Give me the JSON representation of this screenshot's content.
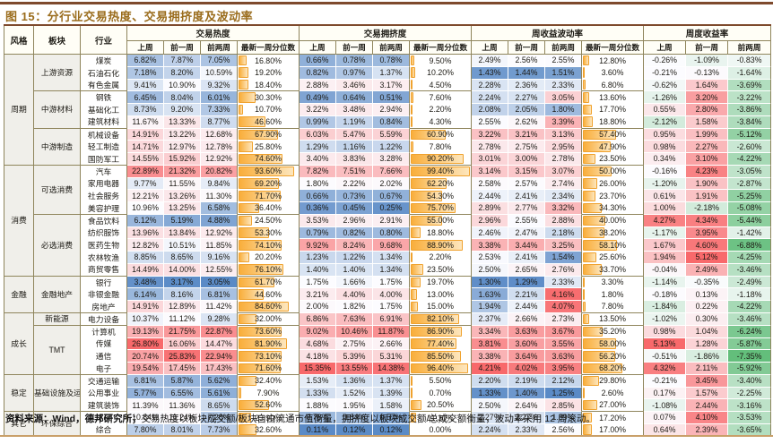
{
  "title": "图 15：分行业交易热度、交易拥挤度及波动率",
  "header": {
    "style_col": "风格",
    "sector_col": "板块",
    "industry_col": "行业",
    "groups": [
      {
        "label": "交易热度",
        "sub": [
          "上周",
          "前一周",
          "前两周",
          "最新一周分位数"
        ]
      },
      {
        "label": "交易拥挤度",
        "sub": [
          "上周",
          "前一周",
          "前两周",
          "最新一周分位数"
        ]
      },
      {
        "label": "周收益波动率",
        "sub": [
          "上周",
          "前一周",
          "前两周",
          "最新一周分位数"
        ]
      },
      {
        "label": "周度收益率",
        "sub": [
          "上周",
          "前一周",
          "前两周"
        ]
      }
    ]
  },
  "styles": [
    {
      "label": "周期",
      "span": 9
    },
    {
      "label": "消费",
      "span": 9
    },
    {
      "label": "金融",
      "span": 3
    },
    {
      "label": "成长",
      "span": 5
    },
    {
      "label": "稳定",
      "span": 3
    },
    {
      "label": "其它",
      "span": 2
    }
  ],
  "sectors": [
    {
      "label": "上游资源",
      "span": 3
    },
    {
      "label": "中游材料",
      "span": 3
    },
    {
      "label": "中游制造",
      "span": 3
    },
    {
      "label": "可选消费",
      "span": 4
    },
    {
      "label": "必选消费",
      "span": 5
    },
    {
      "label": "金融地产",
      "span": 3
    },
    {
      "label": "新能源",
      "span": 1
    },
    {
      "label": "TMT",
      "span": 4
    },
    {
      "label": "基础设施及运营",
      "span": 3
    },
    {
      "label": "环保综合",
      "span": 2
    }
  ],
  "rows": [
    {
      "industry": "煤炭",
      "heat": [
        6.82,
        7.87,
        7.05
      ],
      "heat_pct": 16.8,
      "crowd": [
        0.66,
        0.78,
        0.78
      ],
      "crowd_pct": 9.5,
      "vol": [
        2.49,
        2.56,
        2.55
      ],
      "vol_pct": 12.8,
      "ret": [
        -0.26,
        -1.09,
        -0.83
      ]
    },
    {
      "industry": "石油石化",
      "heat": [
        7.18,
        8.2,
        10.59
      ],
      "heat_pct": 19.2,
      "crowd": [
        0.82,
        0.97,
        1.37
      ],
      "crowd_pct": 10.2,
      "vol": [
        1.43,
        1.44,
        1.51
      ],
      "vol_pct": 3.6,
      "ret": [
        -0.21,
        -0.13,
        -1.64
      ]
    },
    {
      "industry": "有色金属",
      "heat": [
        9.41,
        10.9,
        9.32
      ],
      "heat_pct": 18.4,
      "crowd": [
        2.88,
        3.46,
        3.17
      ],
      "crowd_pct": 4.5,
      "vol": [
        2.28,
        2.36,
        2.33
      ],
      "vol_pct": 6.8,
      "ret": [
        -0.62,
        1.64,
        -3.69
      ]
    },
    {
      "industry": "钢铁",
      "heat": [
        6.45,
        8.04,
        6.01
      ],
      "heat_pct": 30.3,
      "crowd": [
        0.49,
        0.64,
        0.51
      ],
      "crowd_pct": 7.6,
      "vol": [
        2.24,
        2.27,
        3.05
      ],
      "vol_pct": 13.6,
      "ret": [
        -1.26,
        3.2,
        -3.22
      ]
    },
    {
      "industry": "基础化工",
      "heat": [
        8.73,
        9.2,
        7.33
      ],
      "heat_pct": 10.7,
      "crowd": [
        3.22,
        3.48,
        2.94
      ],
      "crowd_pct": 2.2,
      "vol": [
        2.08,
        2.05,
        1.8
      ],
      "vol_pct": 17.7,
      "ret": [
        0.55,
        2.8,
        -3.86
      ]
    },
    {
      "industry": "建筑材料",
      "heat": [
        11.67,
        13.33,
        8.77
      ],
      "heat_pct": 46.6,
      "crowd": [
        0.99,
        1.19,
        0.84
      ],
      "crowd_pct": 4.3,
      "vol": [
        2.55,
        2.62,
        3.39
      ],
      "vol_pct": 18.8,
      "ret": [
        -2.12,
        1.58,
        -3.84
      ]
    },
    {
      "industry": "机械设备",
      "heat": [
        14.91,
        13.22,
        12.68
      ],
      "heat_pct": 67.9,
      "crowd": [
        6.03,
        5.47,
        5.59
      ],
      "crowd_pct": 60.9,
      "vol": [
        3.22,
        3.21,
        3.13
      ],
      "vol_pct": 57.4,
      "ret": [
        0.95,
        1.99,
        -5.12
      ]
    },
    {
      "industry": "轻工制造",
      "heat": [
        14.71,
        12.97,
        12.78
      ],
      "heat_pct": 25.8,
      "crowd": [
        1.29,
        1.16,
        1.22
      ],
      "crowd_pct": 7.8,
      "vol": [
        2.78,
        2.75,
        2.95
      ],
      "vol_pct": 47.9,
      "ret": [
        0.98,
        2.27,
        -2.6
      ]
    },
    {
      "industry": "国防军工",
      "heat": [
        14.55,
        15.92,
        12.92
      ],
      "heat_pct": 74.6,
      "crowd": [
        3.4,
        3.83,
        3.28
      ],
      "crowd_pct": 90.2,
      "vol": [
        3.01,
        3.0,
        2.78
      ],
      "vol_pct": 23.5,
      "ret": [
        0.34,
        3.1,
        -4.22
      ]
    },
    {
      "industry": "汽车",
      "heat": [
        22.89,
        21.32,
        20.82
      ],
      "heat_pct": 93.6,
      "crowd": [
        7.82,
        7.51,
        7.66
      ],
      "crowd_pct": 99.4,
      "vol": [
        3.14,
        3.15,
        3.07
      ],
      "vol_pct": 50.0,
      "ret": [
        -0.16,
        4.23,
        -3.05
      ]
    },
    {
      "industry": "家用电器",
      "heat": [
        9.77,
        11.55,
        9.84
      ],
      "heat_pct": 69.2,
      "crowd": [
        1.8,
        2.22,
        2.02
      ],
      "crowd_pct": 62.2,
      "vol": [
        2.58,
        2.57,
        2.74
      ],
      "vol_pct": 26.0,
      "ret": [
        -1.2,
        1.9,
        -2.87
      ]
    },
    {
      "industry": "社会服务",
      "heat": [
        12.21,
        13.26,
        11.3
      ],
      "heat_pct": 71.7,
      "crowd": [
        0.66,
        0.73,
        0.67
      ],
      "crowd_pct": 54.3,
      "vol": [
        2.44,
        2.41,
        2.34
      ],
      "vol_pct": 23.7,
      "ret": [
        0.61,
        1.91,
        -5.25
      ]
    },
    {
      "industry": "美容护理",
      "heat": [
        10.96,
        13.25,
        6.58
      ],
      "heat_pct": 36.4,
      "crowd": [
        0.36,
        0.45,
        0.25
      ],
      "crowd_pct": 75.7,
      "vol": [
        2.89,
        2.77,
        3.32
      ],
      "vol_pct": 34.3,
      "ret": [
        1.0,
        -2.18,
        -5.08
      ]
    },
    {
      "industry": "食品饮料",
      "heat": [
        6.12,
        5.19,
        4.88
      ],
      "heat_pct": 24.5,
      "crowd": [
        3.53,
        2.96,
        2.91
      ],
      "crowd_pct": 55.0,
      "vol": [
        2.96,
        2.55,
        2.88
      ],
      "vol_pct": 40.0,
      "ret": [
        4.27,
        4.34,
        -5.44
      ]
    },
    {
      "industry": "纺织服饰",
      "heat": [
        13.96,
        13.84,
        12.92
      ],
      "heat_pct": 53.3,
      "crowd": [
        0.79,
        0.82,
        0.8
      ],
      "crowd_pct": 18.8,
      "vol": [
        2.46,
        2.47,
        2.18
      ],
      "vol_pct": 38.2,
      "ret": [
        -1.17,
        3.95,
        -1.42
      ]
    },
    {
      "industry": "医药生物",
      "heat": [
        12.82,
        10.51,
        11.85
      ],
      "heat_pct": 74.1,
      "crowd": [
        9.92,
        8.24,
        9.68
      ],
      "crowd_pct": 88.9,
      "vol": [
        3.38,
        3.44,
        3.25
      ],
      "vol_pct": 58.1,
      "ret": [
        1.67,
        4.6,
        -6.88
      ]
    },
    {
      "industry": "农林牧渔",
      "heat": [
        8.85,
        8.65,
        9.16
      ],
      "heat_pct": 20.2,
      "crowd": [
        1.23,
        1.22,
        1.34
      ],
      "crowd_pct": 2.2,
      "vol": [
        2.53,
        2.41,
        1.54
      ],
      "vol_pct": 25.6,
      "ret": [
        1.94,
        5.12,
        -4.25
      ]
    },
    {
      "industry": "商贸零售",
      "heat": [
        14.49,
        14.0,
        12.55
      ],
      "heat_pct": 76.1,
      "crowd": [
        1.4,
        1.4,
        1.34
      ],
      "crowd_pct": 23.5,
      "vol": [
        2.5,
        2.65,
        2.76
      ],
      "vol_pct": 33.7,
      "ret": [
        -0.04,
        2.49,
        -3.46
      ]
    },
    {
      "industry": "银行",
      "heat": [
        3.48,
        3.17,
        3.05
      ],
      "heat_pct": 61.7,
      "crowd": [
        1.75,
        1.66,
        1.75
      ],
      "crowd_pct": 19.7,
      "vol": [
        1.3,
        1.29,
        2.33
      ],
      "vol_pct": 3.3,
      "ret": [
        -1.14,
        -0.35,
        -2.49
      ]
    },
    {
      "industry": "非银金融",
      "heat": [
        6.14,
        8.16,
        6.81
      ],
      "heat_pct": 44.6,
      "crowd": [
        3.21,
        4.4,
        4.0
      ],
      "crowd_pct": 13.0,
      "vol": [
        1.63,
        2.21,
        4.16
      ],
      "vol_pct": 1.8,
      "ret": [
        -0.18,
        0.13,
        -1.18
      ]
    },
    {
      "industry": "房地产",
      "heat": [
        14.91,
        12.89,
        11.42
      ],
      "heat_pct": 84.6,
      "crowd": [
        2.0,
        1.82,
        1.75
      ],
      "crowd_pct": 15.0,
      "vol": [
        1.94,
        2.44,
        4.07
      ],
      "vol_pct": 7.8,
      "ret": [
        -1.84,
        0.22,
        -4.22
      ]
    },
    {
      "industry": "电力设备",
      "heat": [
        10.37,
        11.12,
        9.28
      ],
      "heat_pct": 32.0,
      "crowd": [
        6.86,
        7.63,
        6.91
      ],
      "crowd_pct": 82.1,
      "vol": [
        2.37,
        2.66,
        2.73
      ],
      "vol_pct": 13.5,
      "ret": [
        -1.02,
        0.3,
        -3.46
      ]
    },
    {
      "industry": "计算机",
      "heat": [
        19.13,
        21.75,
        22.87
      ],
      "heat_pct": 73.6,
      "crowd": [
        9.02,
        10.46,
        11.87
      ],
      "crowd_pct": 86.9,
      "vol": [
        3.34,
        3.63,
        3.67
      ],
      "vol_pct": 35.2,
      "ret": [
        0.98,
        1.04,
        -6.24
      ]
    },
    {
      "industry": "传媒",
      "heat": [
        26.8,
        16.06,
        14.47
      ],
      "heat_pct": 81.9,
      "crowd": [
        4.68,
        2.75,
        2.66
      ],
      "crowd_pct": 77.4,
      "vol": [
        3.81,
        3.6,
        3.55
      ],
      "vol_pct": 58.0,
      "ret": [
        5.13,
        1.28,
        -5.87
      ]
    },
    {
      "industry": "通信",
      "heat": [
        20.74,
        25.83,
        22.94
      ],
      "heat_pct": 73.1,
      "crowd": [
        4.18,
        5.39,
        5.31
      ],
      "crowd_pct": 85.5,
      "vol": [
        3.38,
        3.64,
        3.63
      ],
      "vol_pct": 56.2,
      "ret": [
        -0.51,
        -1.86,
        -7.35
      ]
    },
    {
      "industry": "电子",
      "heat": [
        19.54,
        17.45,
        17.43
      ],
      "heat_pct": 71.6,
      "crowd": [
        15.35,
        13.55,
        14.38
      ],
      "crowd_pct": 96.4,
      "vol": [
        4.21,
        4.02,
        3.95
      ],
      "vol_pct": 68.2,
      "ret": [
        4.32,
        2.11,
        -5.92
      ]
    },
    {
      "industry": "交通运输",
      "heat": [
        6.81,
        5.87,
        5.62
      ],
      "heat_pct": 32.4,
      "crowd": [
        1.53,
        1.36,
        1.37
      ],
      "crowd_pct": 5.5,
      "vol": [
        2.2,
        2.19,
        2.12
      ],
      "vol_pct": 29.8,
      "ret": [
        -0.21,
        3.45,
        -3.4
      ]
    },
    {
      "industry": "公用事业",
      "heat": [
        5.77,
        6.55,
        5.61
      ],
      "heat_pct": 7.9,
      "crowd": [
        1.33,
        1.52,
        1.39
      ],
      "crowd_pct": 0.7,
      "vol": [
        1.33,
        1.4,
        1.25
      ],
      "vol_pct": 2.6,
      "ret": [
        0.17,
        1.57,
        -2.25
      ]
    },
    {
      "industry": "建筑装饰",
      "heat": [
        11.39,
        11.36,
        8.65
      ],
      "heat_pct": 52.6,
      "crowd": [
        1.88,
        1.95,
        1.58
      ],
      "crowd_pct": 20.5,
      "vol": [
        2.5,
        2.64,
        2.85
      ],
      "vol_pct": 27.0,
      "ret": [
        -1.08,
        2.44,
        -3.16
      ]
    },
    {
      "industry": "环保",
      "heat": [
        10.84,
        11.24,
        7.28
      ],
      "heat_pct": 23.9,
      "crowd": [
        0.78,
        0.84,
        0.57
      ],
      "crowd_pct": 11.3,
      "vol": [
        2.27,
        2.27,
        1.89
      ],
      "vol_pct": 17.2,
      "ret": [
        0.07,
        4.1,
        -3.53
      ]
    },
    {
      "industry": "综合",
      "heat": [
        7.8,
        8.01,
        7.73
      ],
      "heat_pct": 32.6,
      "crowd": [
        0.11,
        0.12,
        0.12
      ],
      "crowd_pct": 0.0,
      "vol": [
        2.24,
        2.33,
        2.56
      ],
      "vol_pct": 17.0,
      "ret": [
        0.64,
        2.39,
        -3.65
      ]
    }
  ],
  "footer": {
    "bold": "资料来源：Wind，德邦研究所；",
    "rest": "交易热度以板块成交额/板块自由流通市值衡量，拥挤度以板块成交额/总成交额衡量，波动率采用 12 周滚动。"
  },
  "colors": {
    "scale_low": "#5A8AC6",
    "scale_mid": "#FCFCFF",
    "scale_high": "#F8696B",
    "return_low": "#63BE7B",
    "bar_fill": "#F9AE3B",
    "bar_border": "#F0A22E",
    "title_accent": "#9A6C1C",
    "rule_top": "#7E4A2D",
    "rule_bottom": "#C9A06A",
    "table_border": "#8F855C"
  }
}
